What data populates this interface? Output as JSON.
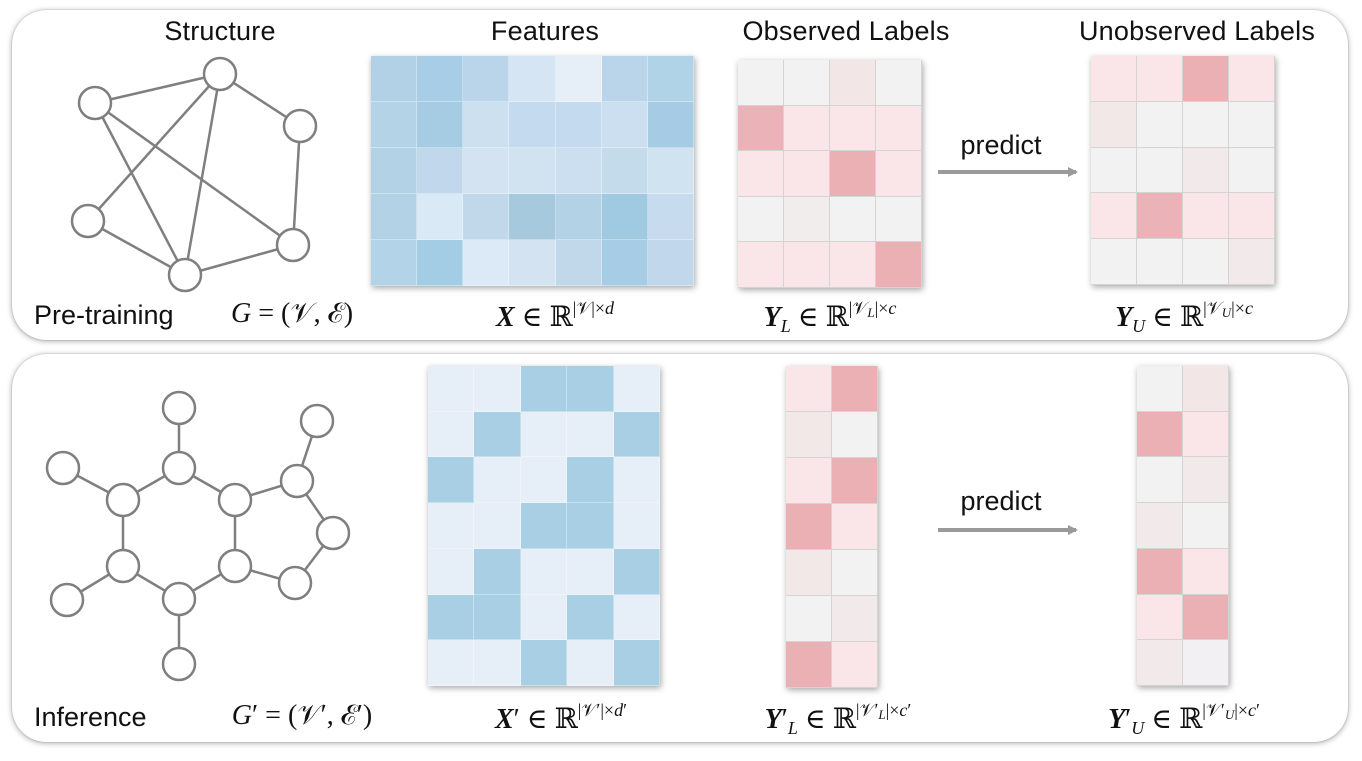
{
  "headers": {
    "structure": "Structure",
    "features": "Features",
    "observed": "Observed Labels",
    "unobserved": "Unobserved Labels"
  },
  "top": {
    "stage_label": "Pre-training",
    "predict_label": "predict",
    "features_grid": [
      [
        "#b3d1e6",
        "#a8cde6",
        "#bad5ea",
        "#d6e5f3",
        "#e6eff8",
        "#bad5ea",
        "#b1d3e7"
      ],
      [
        "#b4d3e7",
        "#a6cce4",
        "#cde0ef",
        "#c4daee",
        "#c4daee",
        "#ccdff0",
        "#a5cce4"
      ],
      [
        "#b3d2e6",
        "#c1d7ec",
        "#d3e3f2",
        "#d1e2f1",
        "#ccdff0",
        "#c3dbea",
        "#cfe3f0"
      ],
      [
        "#b3d2e6",
        "#dae9f6",
        "#c1d8ea",
        "#a7c9dd",
        "#b3d2e6",
        "#9fcae2",
        "#c6dbee"
      ],
      [
        "#b3d3e8",
        "#a3cde5",
        "#dce9f7",
        "#d3e3f2",
        "#c1d8ea",
        "#a6cde5",
        "#c1d8ec"
      ]
    ],
    "observed_grid": [
      [
        "#f2f2f2",
        "#f2f2f2",
        "#f2e6e6",
        "#f2f2f2"
      ],
      [
        "#ebb3b7",
        "#fae6e8",
        "#fae6e8",
        "#fae6e8"
      ],
      [
        "#fae6e8",
        "#fae6e8",
        "#ebb0b4",
        "#fae6e8"
      ],
      [
        "#f2f2f2",
        "#f2eded",
        "#f2f2f2",
        "#f2f2f2"
      ],
      [
        "#fae6e8",
        "#fae6e8",
        "#fae6e8",
        "#ebb0b4"
      ]
    ],
    "unobserved_grid": [
      [
        "#fae6e8",
        "#fae6e8",
        "#ebb0b4",
        "#fae6e8"
      ],
      [
        "#f2e8e8",
        "#f2f2f2",
        "#f2f2f2",
        "#f2f2f2"
      ],
      [
        "#f2f2f2",
        "#f2f2f2",
        "#f2eaea",
        "#f2f2f2"
      ],
      [
        "#fae6e8",
        "#ebb3b7",
        "#fae6e8",
        "#fae6e8"
      ],
      [
        "#f2f2f2",
        "#f2f2f2",
        "#f2f2f2",
        "#f2eaea"
      ]
    ]
  },
  "bottom": {
    "stage_label": "Inference",
    "predict_label": "predict",
    "features_grid": [
      [
        "#e6eff8",
        "#e6eff8",
        "#a9cfe5",
        "#a9cfe5",
        "#e6eff8"
      ],
      [
        "#e6eff8",
        "#a9cfe5",
        "#e6eff8",
        "#e6eff8",
        "#a9cfe5"
      ],
      [
        "#a9cfe5",
        "#e6eff8",
        "#e6eff8",
        "#a9cfe5",
        "#e6eff8"
      ],
      [
        "#e6eff8",
        "#e6eff8",
        "#a9cfe5",
        "#a9cfe5",
        "#e6eff8"
      ],
      [
        "#e6eff8",
        "#a9cfe5",
        "#e6eff8",
        "#e6eff8",
        "#a9cfe5"
      ],
      [
        "#a9cfe5",
        "#a9cfe5",
        "#e6eff8",
        "#a9cfe5",
        "#e6eff8"
      ],
      [
        "#e6eff8",
        "#e6eff8",
        "#a9cfe5",
        "#e6eff8",
        "#a9cfe5"
      ]
    ],
    "observed_grid": [
      [
        "#fae6e8",
        "#ebb0b4"
      ],
      [
        "#f2e8e8",
        "#f2f2f2"
      ],
      [
        "#fae6e8",
        "#ebb0b4"
      ],
      [
        "#ebb0b4",
        "#fae6e8"
      ],
      [
        "#f2e8e8",
        "#f2f2f2"
      ],
      [
        "#f2f2f2",
        "#f2eaea"
      ],
      [
        "#ebb0b4",
        "#fae6e8"
      ]
    ],
    "unobserved_grid": [
      [
        "#f2f2f2",
        "#f2e6e6"
      ],
      [
        "#ebb0b4",
        "#fae6e8"
      ],
      [
        "#f2f2f2",
        "#f2eaea"
      ],
      [
        "#f2eaea",
        "#f2f2f2"
      ],
      [
        "#ebb0b4",
        "#fae6e8"
      ],
      [
        "#fae6e8",
        "#ebb0b4"
      ],
      [
        "#f2eaea",
        "#f2f0f2"
      ]
    ]
  }
}
